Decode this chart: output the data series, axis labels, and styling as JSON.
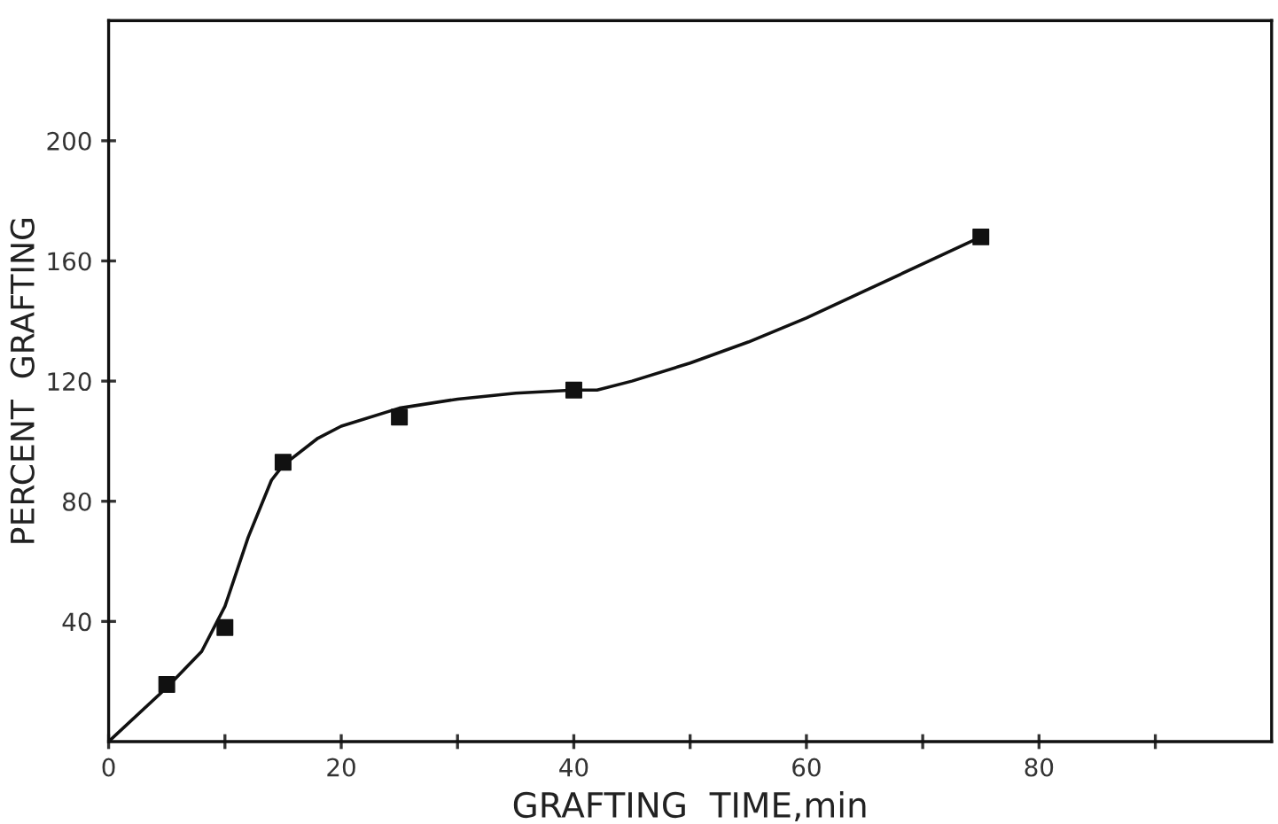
{
  "chart_data": {
    "type": "scatter",
    "xlabel": "GRAFTING  TIME,min",
    "ylabel": "PERCENT  GRAFTING",
    "xlim": [
      0,
      100
    ],
    "ylim": [
      0,
      240
    ],
    "xticks": [
      0,
      {
        "value": 10,
        "label": null
      },
      20,
      {
        "value": 30,
        "label": null
      },
      40,
      {
        "value": 50,
        "label": null
      },
      60,
      {
        "value": 70,
        "label": null
      },
      80,
      {
        "value": 90,
        "label": null
      }
    ],
    "yticks": [
      40,
      80,
      120,
      160,
      200
    ],
    "grid": false,
    "legend": false,
    "series": [
      {
        "color": "#111111",
        "marker": "square",
        "x": [
          5,
          10,
          15,
          25,
          40,
          75
        ],
        "values": [
          19,
          38,
          93,
          108,
          117,
          168
        ]
      },
      {
        "type": "line",
        "color": "#111111",
        "marker": "none",
        "line_style": "solid",
        "x": [
          0,
          5,
          8,
          10,
          12,
          14,
          15,
          18,
          20,
          25,
          30,
          35,
          40,
          42,
          45,
          50,
          55,
          60,
          65,
          70,
          75
        ],
        "values": [
          0,
          18,
          30,
          45,
          68,
          87,
          92,
          101,
          105,
          111,
          114,
          116,
          117,
          117,
          120,
          126,
          133,
          141,
          150,
          159,
          168
        ]
      }
    ]
  }
}
